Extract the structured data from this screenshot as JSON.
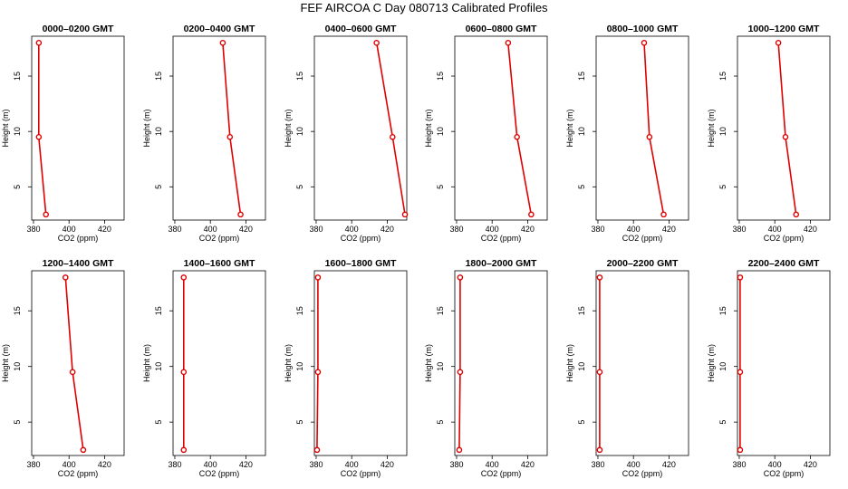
{
  "figure_title": "FEF AIRCOA C  Day 080713  Calibrated Profiles",
  "colors": {
    "series": "#e00000",
    "axis": "#000000"
  },
  "chart_data": [
    {
      "type": "line",
      "title": "0000–0200 GMT",
      "xlabel": "CO2 (ppm)",
      "ylabel": "Height (m)",
      "xlim": [
        379,
        431
      ],
      "ylim": [
        2,
        18.6
      ],
      "xticks": [
        380,
        400,
        420
      ],
      "yticks": [
        5,
        10,
        15
      ],
      "series": [
        {
          "x": [
            387,
            383,
            383
          ],
          "y": [
            2.5,
            9.5,
            18.0
          ]
        }
      ]
    },
    {
      "type": "line",
      "title": "0200–0400 GMT",
      "xlabel": "CO2 (ppm)",
      "ylabel": "Height (m)",
      "xlim": [
        379,
        431
      ],
      "ylim": [
        2,
        18.6
      ],
      "xticks": [
        380,
        400,
        420
      ],
      "yticks": [
        5,
        10,
        15
      ],
      "series": [
        {
          "x": [
            417,
            411,
            407
          ],
          "y": [
            2.5,
            9.5,
            18.0
          ]
        }
      ]
    },
    {
      "type": "line",
      "title": "0400–0600 GMT",
      "xlabel": "CO2 (ppm)",
      "ylabel": "Height (m)",
      "xlim": [
        379,
        431
      ],
      "ylim": [
        2,
        18.6
      ],
      "xticks": [
        380,
        400,
        420
      ],
      "yticks": [
        5,
        10,
        15
      ],
      "series": [
        {
          "x": [
            430,
            423,
            414
          ],
          "y": [
            2.5,
            9.5,
            18.0
          ]
        }
      ]
    },
    {
      "type": "line",
      "title": "0600–0800 GMT",
      "xlabel": "CO2 (ppm)",
      "ylabel": "Height (m)",
      "xlim": [
        379,
        431
      ],
      "ylim": [
        2,
        18.6
      ],
      "xticks": [
        380,
        400,
        420
      ],
      "yticks": [
        5,
        10,
        15
      ],
      "series": [
        {
          "x": [
            422,
            414,
            409
          ],
          "y": [
            2.5,
            9.5,
            18.0
          ]
        }
      ]
    },
    {
      "type": "line",
      "title": "0800–1000 GMT",
      "xlabel": "CO2 (ppm)",
      "ylabel": "Height (m)",
      "xlim": [
        379,
        431
      ],
      "ylim": [
        2,
        18.6
      ],
      "xticks": [
        380,
        400,
        420
      ],
      "yticks": [
        5,
        10,
        15
      ],
      "series": [
        {
          "x": [
            417,
            409,
            406
          ],
          "y": [
            2.5,
            9.5,
            18.0
          ]
        }
      ]
    },
    {
      "type": "line",
      "title": "1000–1200 GMT",
      "xlabel": "CO2 (ppm)",
      "ylabel": "Height (m)",
      "xlim": [
        379,
        431
      ],
      "ylim": [
        2,
        18.6
      ],
      "xticks": [
        380,
        400,
        420
      ],
      "yticks": [
        5,
        10,
        15
      ],
      "series": [
        {
          "x": [
            412,
            406,
            402
          ],
          "y": [
            2.5,
            9.5,
            18.0
          ]
        }
      ]
    },
    {
      "type": "line",
      "title": "1200–1400 GMT",
      "xlabel": "CO2 (ppm)",
      "ylabel": "Height (m)",
      "xlim": [
        379,
        431
      ],
      "ylim": [
        2,
        18.6
      ],
      "xticks": [
        380,
        400,
        420
      ],
      "yticks": [
        5,
        10,
        15
      ],
      "series": [
        {
          "x": [
            408,
            402,
            398
          ],
          "y": [
            2.5,
            9.5,
            18.0
          ]
        }
      ]
    },
    {
      "type": "line",
      "title": "1400–1600 GMT",
      "xlabel": "CO2 (ppm)",
      "ylabel": "Height (m)",
      "xlim": [
        379,
        431
      ],
      "ylim": [
        2,
        18.6
      ],
      "xticks": [
        380,
        400,
        420
      ],
      "yticks": [
        5,
        10,
        15
      ],
      "series": [
        {
          "x": [
            385,
            385,
            385
          ],
          "y": [
            2.5,
            9.5,
            18.0
          ]
        }
      ]
    },
    {
      "type": "line",
      "title": "1600–1800 GMT",
      "xlabel": "CO2 (ppm)",
      "ylabel": "Height (m)",
      "xlim": [
        379,
        431
      ],
      "ylim": [
        2,
        18.6
      ],
      "xticks": [
        380,
        400,
        420
      ],
      "yticks": [
        5,
        10,
        15
      ],
      "series": [
        {
          "x": [
            380.5,
            381,
            381
          ],
          "y": [
            2.5,
            9.5,
            18.0
          ]
        }
      ]
    },
    {
      "type": "line",
      "title": "1800–2000 GMT",
      "xlabel": "CO2 (ppm)",
      "ylabel": "Height (m)",
      "xlim": [
        379,
        431
      ],
      "ylim": [
        2,
        18.6
      ],
      "xticks": [
        380,
        400,
        420
      ],
      "yticks": [
        5,
        10,
        15
      ],
      "series": [
        {
          "x": [
            381.5,
            382,
            382
          ],
          "y": [
            2.5,
            9.5,
            18.0
          ]
        }
      ]
    },
    {
      "type": "line",
      "title": "2000–2200 GMT",
      "xlabel": "CO2 (ppm)",
      "ylabel": "Height (m)",
      "xlim": [
        379,
        431
      ],
      "ylim": [
        2,
        18.6
      ],
      "xticks": [
        380,
        400,
        420
      ],
      "yticks": [
        5,
        10,
        15
      ],
      "series": [
        {
          "x": [
            381,
            381,
            381
          ],
          "y": [
            2.5,
            9.5,
            18.0
          ]
        }
      ]
    },
    {
      "type": "line",
      "title": "2200–2400 GMT",
      "xlabel": "CO2 (ppm)",
      "ylabel": "Height (m)",
      "xlim": [
        379,
        431
      ],
      "ylim": [
        2,
        18.6
      ],
      "xticks": [
        380,
        400,
        420
      ],
      "yticks": [
        5,
        10,
        15
      ],
      "series": [
        {
          "x": [
            380.5,
            380.5,
            380.5
          ],
          "y": [
            2.5,
            9.5,
            18.0
          ]
        }
      ]
    }
  ]
}
